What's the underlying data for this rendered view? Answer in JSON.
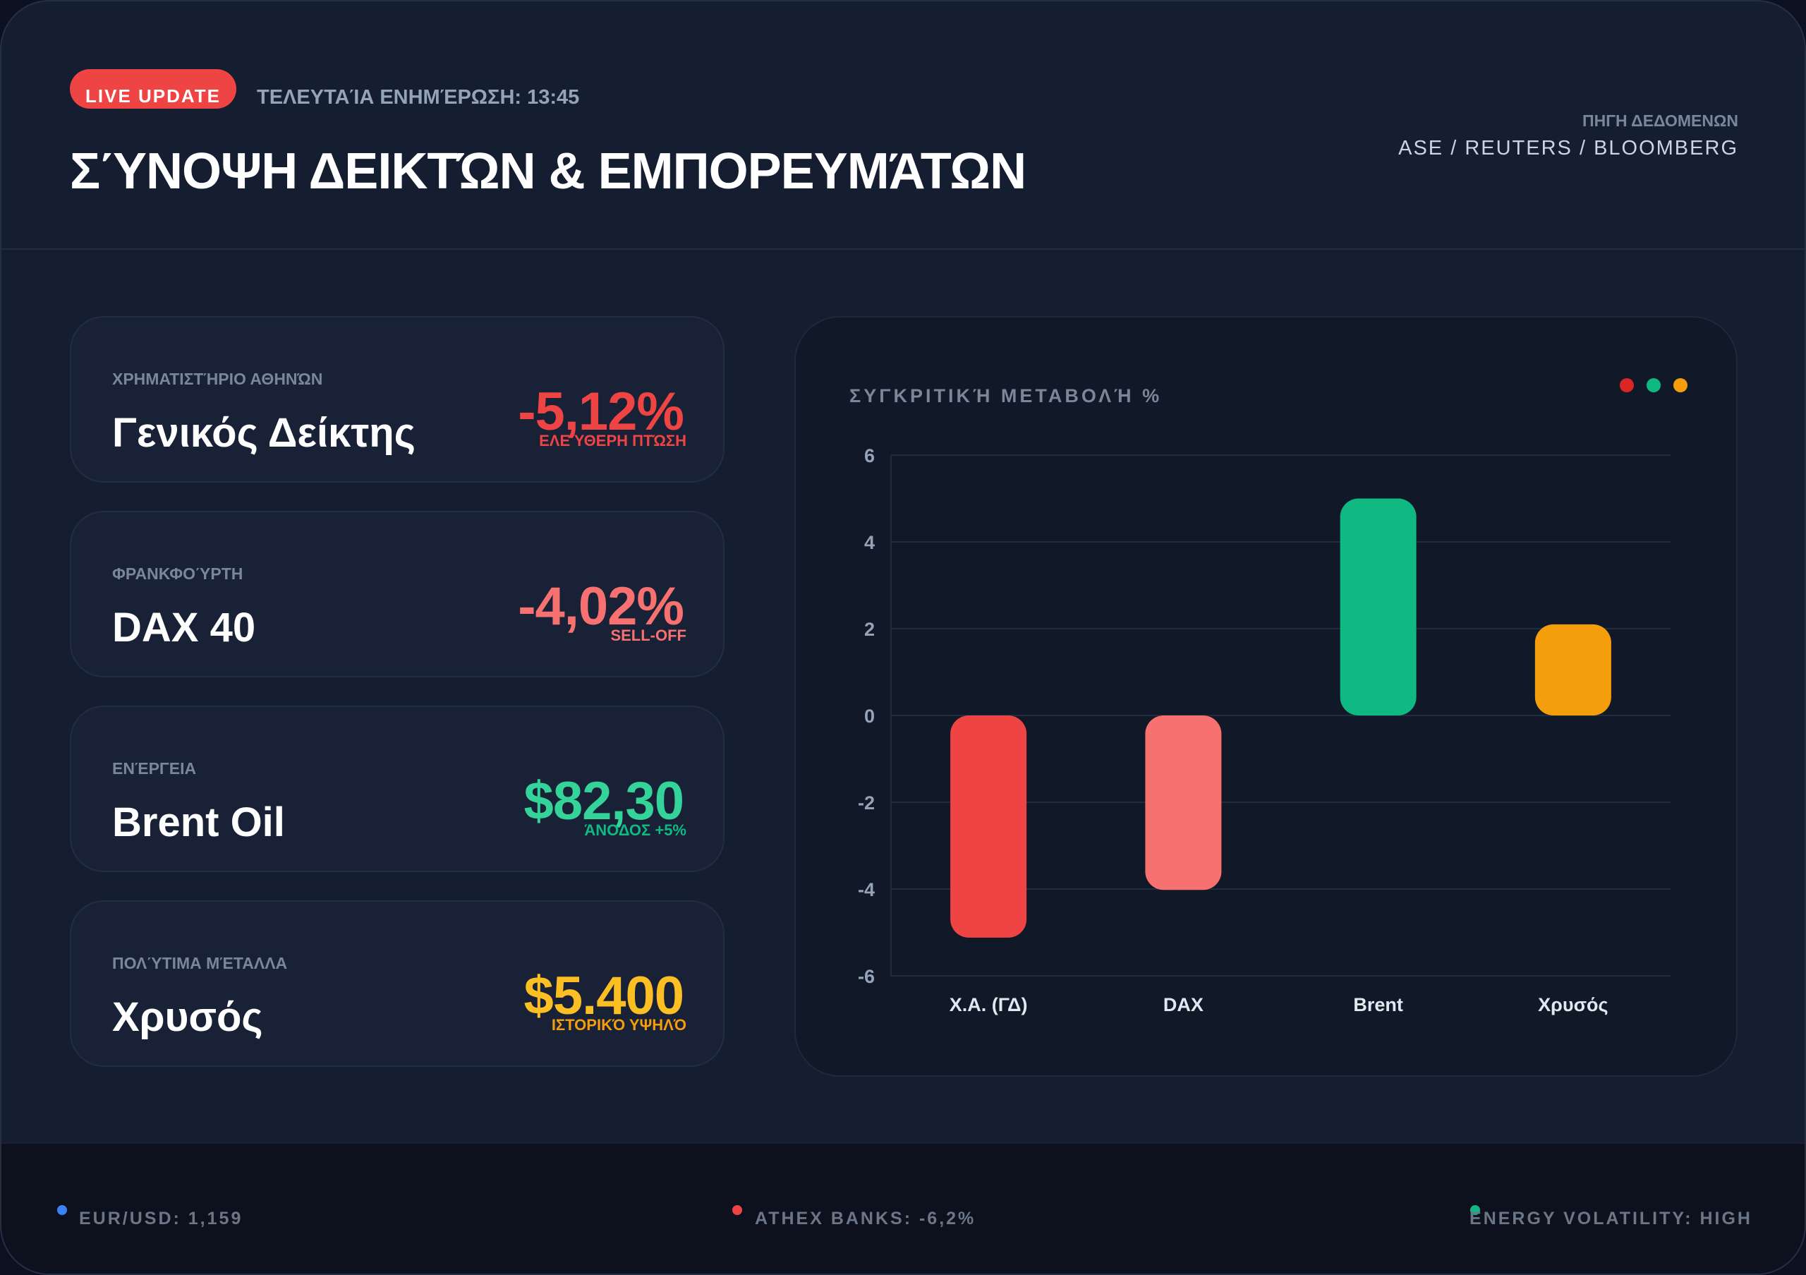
{
  "header": {
    "live_badge": "LIVE UPDATE",
    "last_update": "ΤΕΛΕΥΤΑΊΑ ΕΝΗΜΈΡΩΣΗ: 13:45",
    "title": "ΣΎΝΟΨΗ ΔΕΙΚΤΏΝ & ΕΜΠΟΡΕΥΜΆΤΩΝ",
    "source_label": "ΠΗΓΗ ΔΕΔΟΜΕΝΩΝ",
    "source_value": "ASE / REUTERS / BLOOMBERG"
  },
  "cards": [
    {
      "label": "ΧΡΗΜΑΤΙΣΤΉΡΙΟ ΑΘΗΝΏΝ",
      "title": "Γενικός Δείκτης",
      "value": "-5,12%",
      "note": "ΕΛΕΎΘΕΡΗ ΠΤΏΣΗ",
      "value_color": "#ef4444",
      "note_color": "#ef4444"
    },
    {
      "label": "ΦΡΑΝΚΦΟΎΡΤΗ",
      "title": "DAX 40",
      "value": "-4,02%",
      "note": "SELL-OFF",
      "value_color": "#f87171",
      "note_color": "#f87171"
    },
    {
      "label": "ΕΝΈΡΓΕΙΑ",
      "title": "Brent Oil",
      "value": "$82,30",
      "note": "ΆΝΟΔΟΣ +5%",
      "value_color": "#34d399",
      "note_color": "#10b981"
    },
    {
      "label": "ΠΟΛΎΤΙΜΑ ΜΈΤΑΛΛΑ",
      "title": "Χρυσός",
      "value": "$5.400",
      "note": "ΙΣΤΟΡΙΚΌ ΥΨΗΛΌ",
      "value_color": "#fbbf24",
      "note_color": "#f59e0b"
    }
  ],
  "chart_panel": {
    "title": "ΣΥΓΚΡΙΤΙΚΉ ΜΕΤΑΒΟΛΉ %",
    "dot_colors": [
      "#dc2626",
      "#10b981",
      "#f59e0b"
    ]
  },
  "chart_data": {
    "type": "bar",
    "title": "ΣΥΓΚΡΙΤΙΚΉ ΜΕΤΑΒΟΛΉ %",
    "categories": [
      "Χ.Α. (ΓΔ)",
      "DAX",
      "Brent",
      "Χρυσός"
    ],
    "values": [
      -5.12,
      -4.02,
      5.0,
      2.1
    ],
    "colors": [
      "#ef4444",
      "#f87171",
      "#10b981",
      "#f59e0b"
    ],
    "ylim": [
      -6,
      6
    ],
    "yticks": [
      6,
      4,
      2,
      0,
      -2,
      -4,
      -6
    ],
    "grid": true,
    "xlabel": "",
    "ylabel": ""
  },
  "footer": {
    "items": [
      {
        "text": "EUR/USD: 1,159",
        "dot_color": "#3b82f6"
      },
      {
        "text": "ATHEX BANKS: -6,2%",
        "dot_color": "#ef4444"
      },
      {
        "text": "ENERGY VOLATILITY: HIGH",
        "dot_color": "#10b981"
      }
    ]
  }
}
